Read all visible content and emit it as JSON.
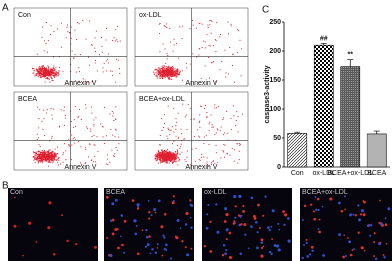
{
  "panels": {
    "a": "A",
    "b": "B",
    "c": "C"
  },
  "flow": [
    {
      "label": "Con",
      "xlabel": "Annexin V"
    },
    {
      "label": "ox-LDL",
      "xlabel": "Annexin V"
    },
    {
      "label": "BCEA",
      "xlabel": "Annexin V"
    },
    {
      "label": "BCEA+ox-LDL",
      "xlabel": "Annexin V"
    }
  ],
  "chart_data": {
    "type": "bar",
    "ylabel": "caspase3-activity",
    "categories": [
      "Con",
      "ox-LDL",
      "BCEA+ox-LDL",
      "BCEA"
    ],
    "values": [
      58,
      210,
      173,
      57
    ],
    "errors": [
      2,
      3,
      12,
      5
    ],
    "annotations": [
      null,
      "##",
      "**",
      null
    ],
    "ylim": [
      0,
      250
    ],
    "yticks": [
      0,
      50,
      100,
      150,
      200,
      250
    ]
  },
  "images": [
    {
      "label": "Con"
    },
    {
      "label": "BCEA"
    },
    {
      "label": "ox-LDL"
    },
    {
      "label": "BCEA+ox-LDL"
    }
  ]
}
